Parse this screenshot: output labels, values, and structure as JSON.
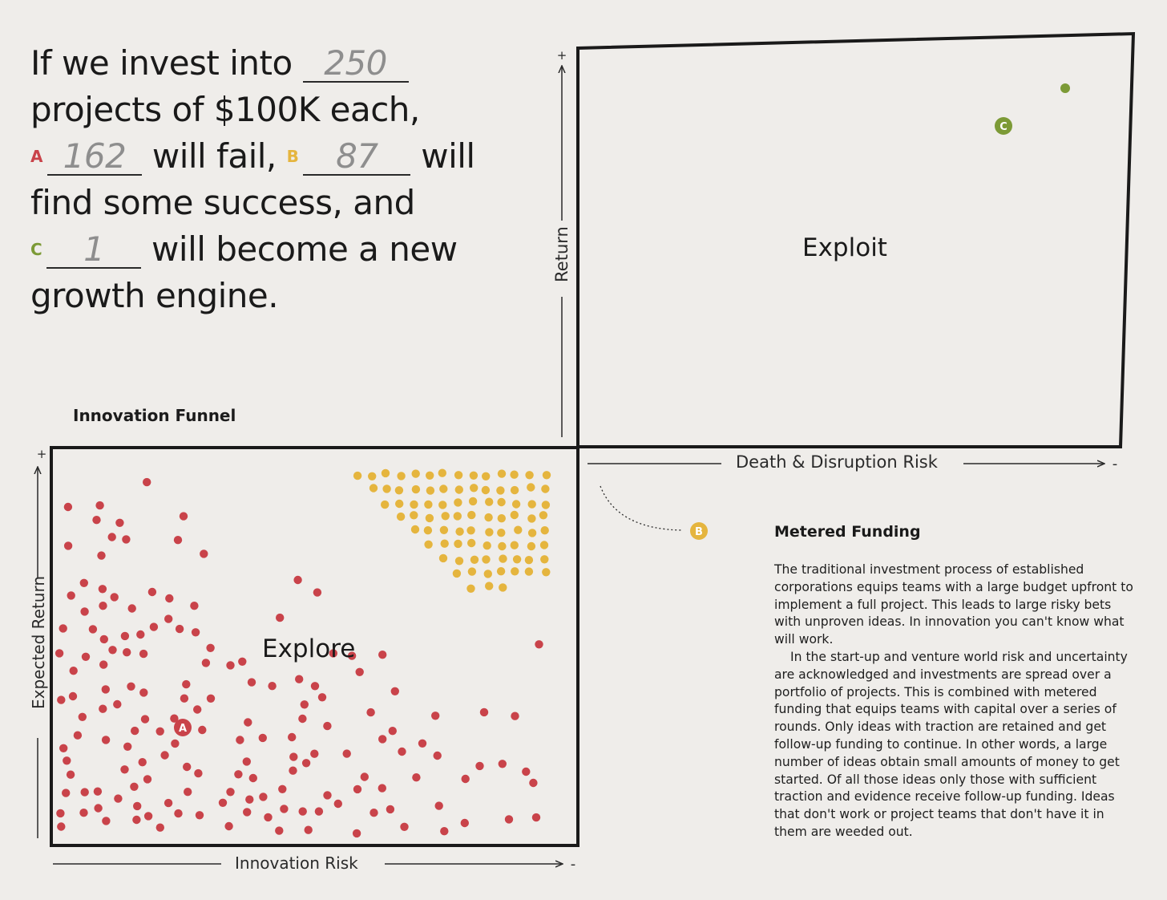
{
  "intro": {
    "line1_prefix": "If we invest into",
    "total_projects": "250",
    "line2": "projects of $100K each,",
    "marker_a": "A",
    "fail_count": "162",
    "fail_text": "will fail,",
    "marker_b": "B",
    "success_count": "87",
    "will": "will",
    "line4": "find some success, and",
    "marker_c": "C",
    "engine_count": "1",
    "line5_suffix": "will become a new",
    "line6": "growth engine."
  },
  "diagram": {
    "funnel_title": "Innovation Funnel",
    "explore_label": "Explore",
    "exploit_label": "Exploit",
    "x_axis_explore": "Innovation Risk",
    "y_axis_explore": "Expected Return",
    "x_axis_exploit": "Death & Disruption Risk",
    "y_axis_exploit": "Return",
    "plus_sign": "+",
    "minus_sign": "-",
    "marker_a": "A",
    "marker_b": "B",
    "marker_c": "C",
    "colors": {
      "fail": "#c9434a",
      "success": "#e5b53e",
      "engine": "#7c9a36"
    },
    "counts": {
      "fail": 162,
      "success": 87,
      "engine": 1
    }
  },
  "sidebar": {
    "title": "Metered Funding",
    "paragraph1": "The traditional investment process of established corporations equips teams with a large budget upfront to implement a full project. This leads to large risky bets with unproven ideas. In innovation you can't know what will work.",
    "paragraph2": "In the start-up and venture world risk and uncertainty are acknowledged and investments are spread over a portfolio of projects. This is combined with metered funding that equips teams with capital over a series of rounds. Only ideas with traction are retained and get follow-up funding to continue. In other words, a large number of ideas obtain small amounts of money to get started. Of all those ideas only those with sufficient traction and evidence receive follow-up funding. Ideas that don't work or project teams that don't have it in them are weeded out."
  }
}
